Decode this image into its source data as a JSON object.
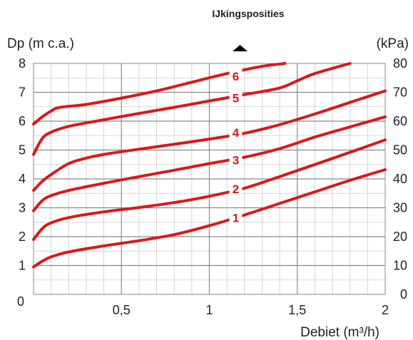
{
  "chart_data": {
    "type": "line",
    "title": "IJkingsposities",
    "xlabel": "Debiet (m³/h)",
    "ylabel_left": "Dp (m c.a.)",
    "ylabel_right": "(kPa)",
    "xlim": [
      0,
      2
    ],
    "ylim_left": [
      0,
      8
    ],
    "ylim_right": [
      0,
      80
    ],
    "x_tick_labels": [
      "0,5",
      "1",
      "1,5",
      "2"
    ],
    "x_tick_values": [
      0.5,
      1,
      1.5,
      2
    ],
    "y_left_tick_labels": [
      "0",
      "1",
      "2",
      "3",
      "4",
      "5",
      "6",
      "7",
      "8"
    ],
    "y_right_tick_labels": [
      "0",
      "10",
      "20",
      "30",
      "40",
      "50",
      "60",
      "70",
      "80"
    ],
    "origin_label": "0",
    "grid": true,
    "line_color": "#d7191c",
    "series": [
      {
        "name": "1",
        "x": [
          0,
          0.05,
          0.1,
          0.2,
          0.4,
          0.6,
          0.8,
          1.0,
          1.2,
          1.4,
          1.6,
          1.8,
          2.0
        ],
        "y": [
          0.95,
          1.15,
          1.3,
          1.47,
          1.68,
          1.86,
          2.07,
          2.38,
          2.75,
          3.15,
          3.55,
          3.95,
          4.32
        ]
      },
      {
        "name": "2",
        "x": [
          0,
          0.05,
          0.1,
          0.2,
          0.4,
          0.6,
          0.8,
          1.0,
          1.2,
          1.4,
          1.6,
          1.8,
          2.0
        ],
        "y": [
          1.9,
          2.28,
          2.48,
          2.66,
          2.86,
          3.01,
          3.18,
          3.4,
          3.68,
          4.08,
          4.5,
          4.92,
          5.35
        ]
      },
      {
        "name": "3",
        "x": [
          0,
          0.05,
          0.1,
          0.2,
          0.4,
          0.6,
          0.8,
          1.0,
          1.2,
          1.4,
          1.6,
          1.8,
          2.0
        ],
        "y": [
          2.9,
          3.25,
          3.42,
          3.6,
          3.85,
          4.08,
          4.3,
          4.53,
          4.75,
          5.05,
          5.45,
          5.8,
          6.15
        ]
      },
      {
        "name": "4",
        "x": [
          0,
          0.05,
          0.1,
          0.2,
          0.3,
          0.4,
          0.6,
          0.8,
          1.0,
          1.2,
          1.4,
          1.6,
          1.8,
          2.0
        ],
        "y": [
          3.6,
          3.92,
          4.15,
          4.53,
          4.72,
          4.85,
          5.03,
          5.2,
          5.38,
          5.58,
          5.88,
          6.25,
          6.65,
          7.05
        ]
      },
      {
        "name": "5",
        "x": [
          0,
          0.05,
          0.1,
          0.2,
          0.4,
          0.6,
          0.8,
          1.0,
          1.2,
          1.4,
          1.5,
          1.6,
          1.8
        ],
        "y": [
          4.85,
          5.4,
          5.62,
          5.82,
          6.05,
          6.27,
          6.48,
          6.7,
          6.92,
          7.15,
          7.4,
          7.65,
          8.0
        ]
      },
      {
        "name": "6",
        "x": [
          0,
          0.05,
          0.1,
          0.15,
          0.3,
          0.5,
          0.7,
          0.9,
          1.1,
          1.3,
          1.43
        ],
        "y": [
          5.9,
          6.15,
          6.35,
          6.48,
          6.58,
          6.8,
          7.05,
          7.35,
          7.65,
          7.9,
          8.0
        ]
      }
    ],
    "curve_labels": [
      {
        "text": "1",
        "x": 1.15,
        "y": 2.65
      },
      {
        "text": "2",
        "x": 1.15,
        "y": 3.65
      },
      {
        "text": "3",
        "x": 1.15,
        "y": 4.65
      },
      {
        "text": "4",
        "x": 1.15,
        "y": 5.6
      },
      {
        "text": "5",
        "x": 1.15,
        "y": 6.8
      },
      {
        "text": "6",
        "x": 1.15,
        "y": 7.55
      }
    ],
    "arrow_icon": "up-arrow-icon"
  }
}
